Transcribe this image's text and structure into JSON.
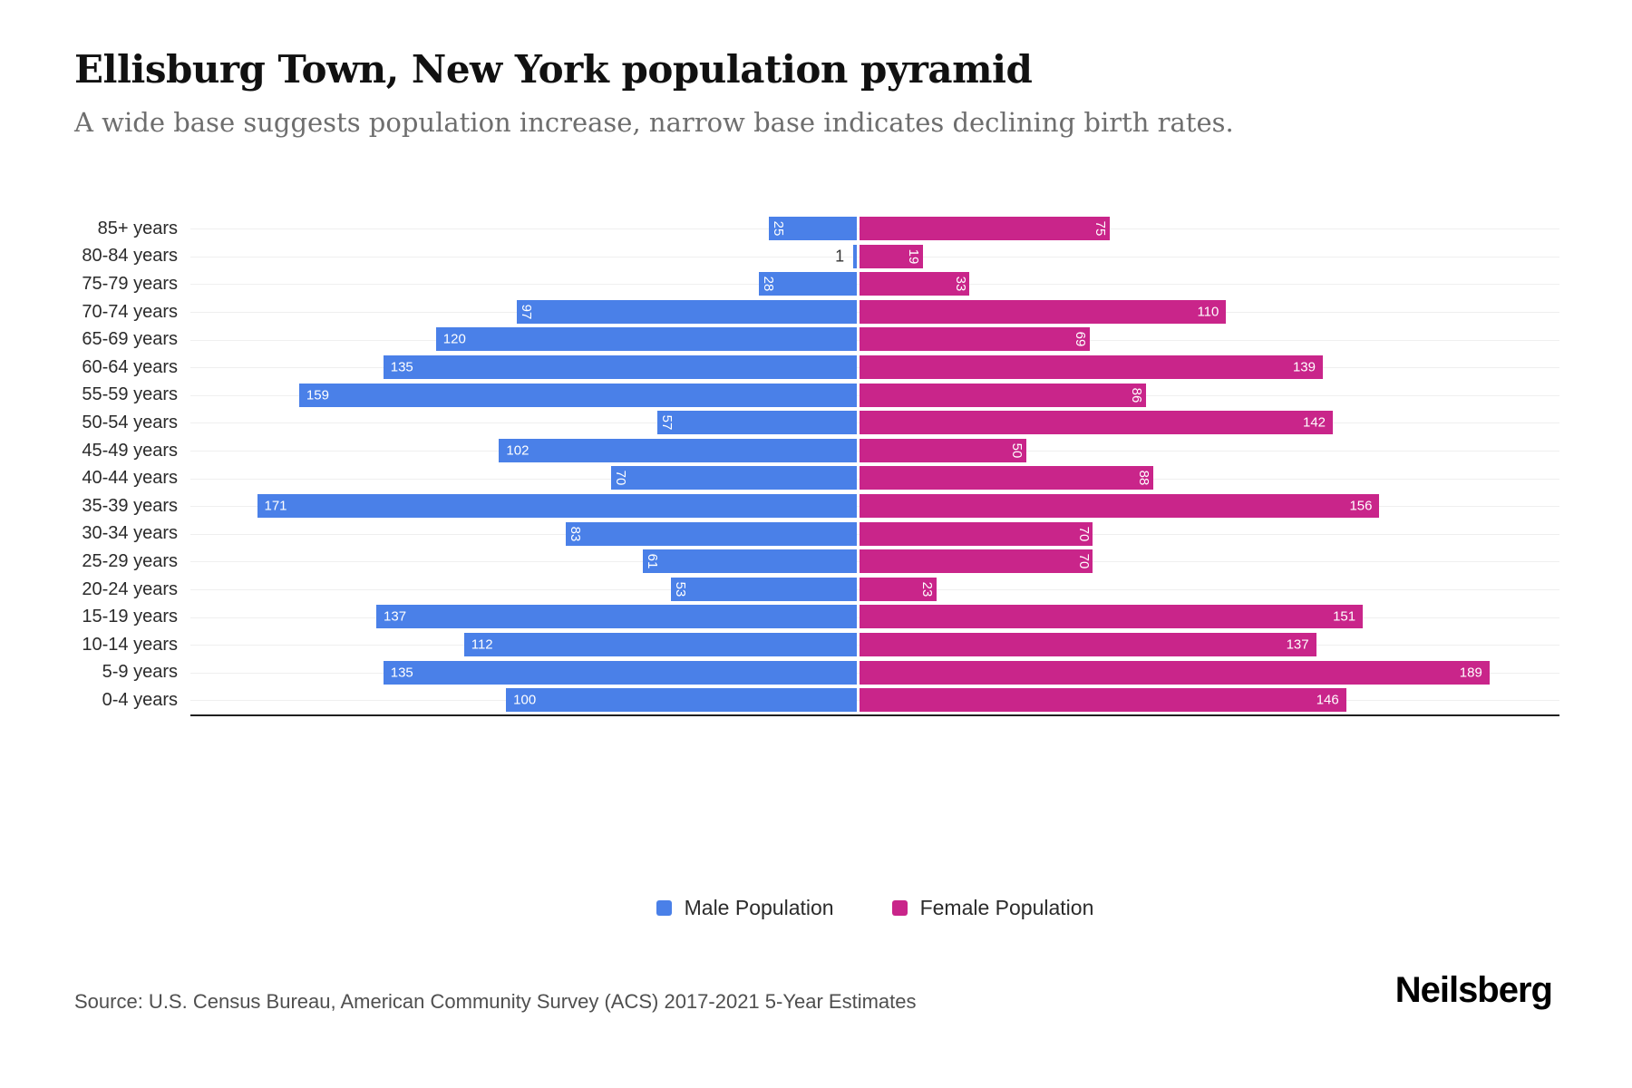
{
  "header": {
    "title": "Ellisburg Town, New York population pyramid",
    "subtitle": "A wide base suggests population increase, narrow base indicates declining birth rates."
  },
  "chart_data": {
    "type": "bar",
    "variant": "population-pyramid",
    "title": "Ellisburg Town, New York population pyramid",
    "categories": [
      "85+ years",
      "80-84 years",
      "75-79 years",
      "70-74 years",
      "65-69 years",
      "60-64 years",
      "55-59 years",
      "50-54 years",
      "45-49 years",
      "40-44 years",
      "35-39 years",
      "30-34 years",
      "25-29 years",
      "20-24 years",
      "15-19 years",
      "10-14 years",
      "5-9 years",
      "0-4 years"
    ],
    "series": [
      {
        "name": "Male Population",
        "color": "#4a80e8",
        "values": [
          25,
          1,
          28,
          97,
          120,
          135,
          159,
          57,
          102,
          70,
          171,
          83,
          61,
          53,
          137,
          112,
          135,
          100
        ]
      },
      {
        "name": "Female Population",
        "color": "#c9258a",
        "values": [
          75,
          19,
          33,
          110,
          69,
          139,
          86,
          142,
          50,
          88,
          156,
          70,
          70,
          23,
          151,
          137,
          189,
          146
        ]
      }
    ],
    "xlim_male": [
      0,
      190
    ],
    "xlim_female": [
      0,
      210
    ],
    "grid": true,
    "legend_position": "bottom",
    "value_labels": "inside-end, white, rotated 90deg when value < 100, outside in black when value < 10"
  },
  "footer": {
    "source": "Source: U.S. Census Bureau, American Community Survey (ACS) 2017-2021 5-Year Estimates",
    "brand": "Neilsberg"
  }
}
